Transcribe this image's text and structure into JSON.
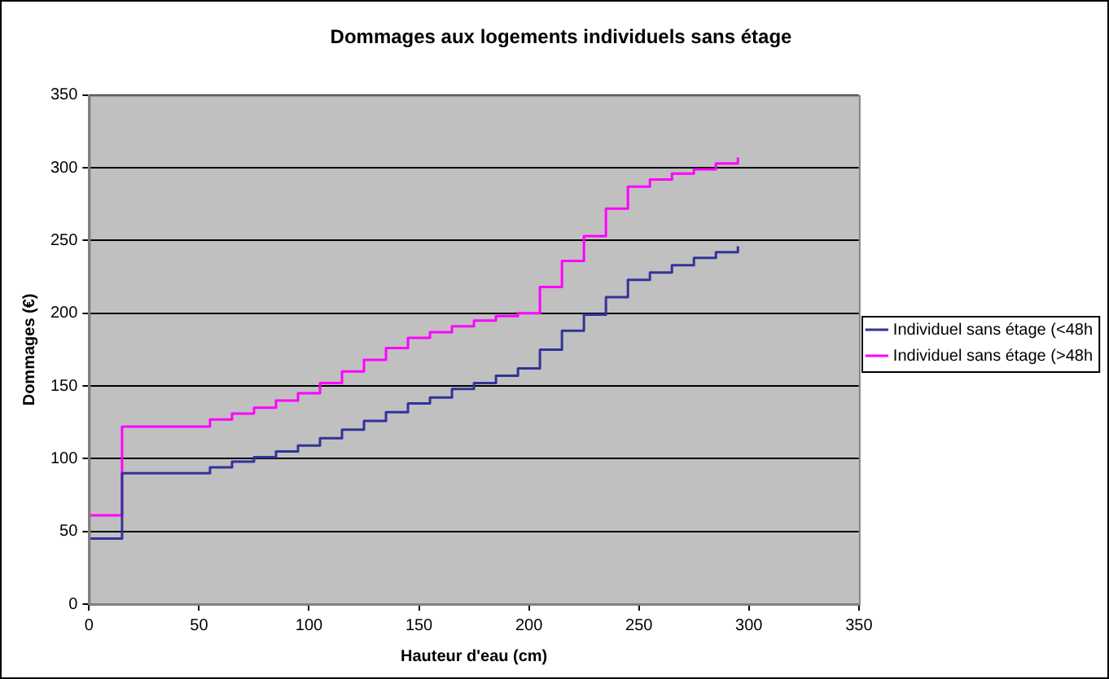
{
  "chart_data": {
    "type": "step",
    "title": "Dommages aux logements individuels sans étage",
    "xlabel": "Hauteur d'eau (cm)",
    "ylabel": "Dommages (€)",
    "x": [
      0,
      15,
      55,
      65,
      75,
      85,
      95,
      105,
      115,
      125,
      135,
      145,
      155,
      165,
      175,
      185,
      195,
      205,
      215,
      225,
      235,
      245,
      255,
      265,
      275,
      285,
      295
    ],
    "series": [
      {
        "name": "Individuel sans étage (<48h",
        "color": "#333399",
        "values": [
          45,
          90,
          94,
          98,
          101,
          105,
          109,
          114,
          120,
          126,
          132,
          138,
          142,
          148,
          152,
          157,
          162,
          175,
          188,
          199,
          211,
          223,
          228,
          233,
          238,
          242,
          246
        ]
      },
      {
        "name": "Individuel sans étage (>48h",
        "color": "#ff00ff",
        "values": [
          61,
          122,
          127,
          131,
          135,
          140,
          145,
          152,
          160,
          168,
          176,
          183,
          187,
          191,
          195,
          198,
          200,
          218,
          236,
          253,
          272,
          287,
          292,
          296,
          299,
          303,
          307
        ]
      }
    ],
    "xlim": [
      0,
      350
    ],
    "xticks": [
      0,
      50,
      100,
      150,
      200,
      250,
      300,
      350
    ],
    "ylim": [
      0,
      350
    ],
    "yticks": [
      0,
      50,
      100,
      150,
      200,
      250,
      300,
      350
    ],
    "grid": "y",
    "legend": "right",
    "marker": "none",
    "line_style": "solid"
  }
}
